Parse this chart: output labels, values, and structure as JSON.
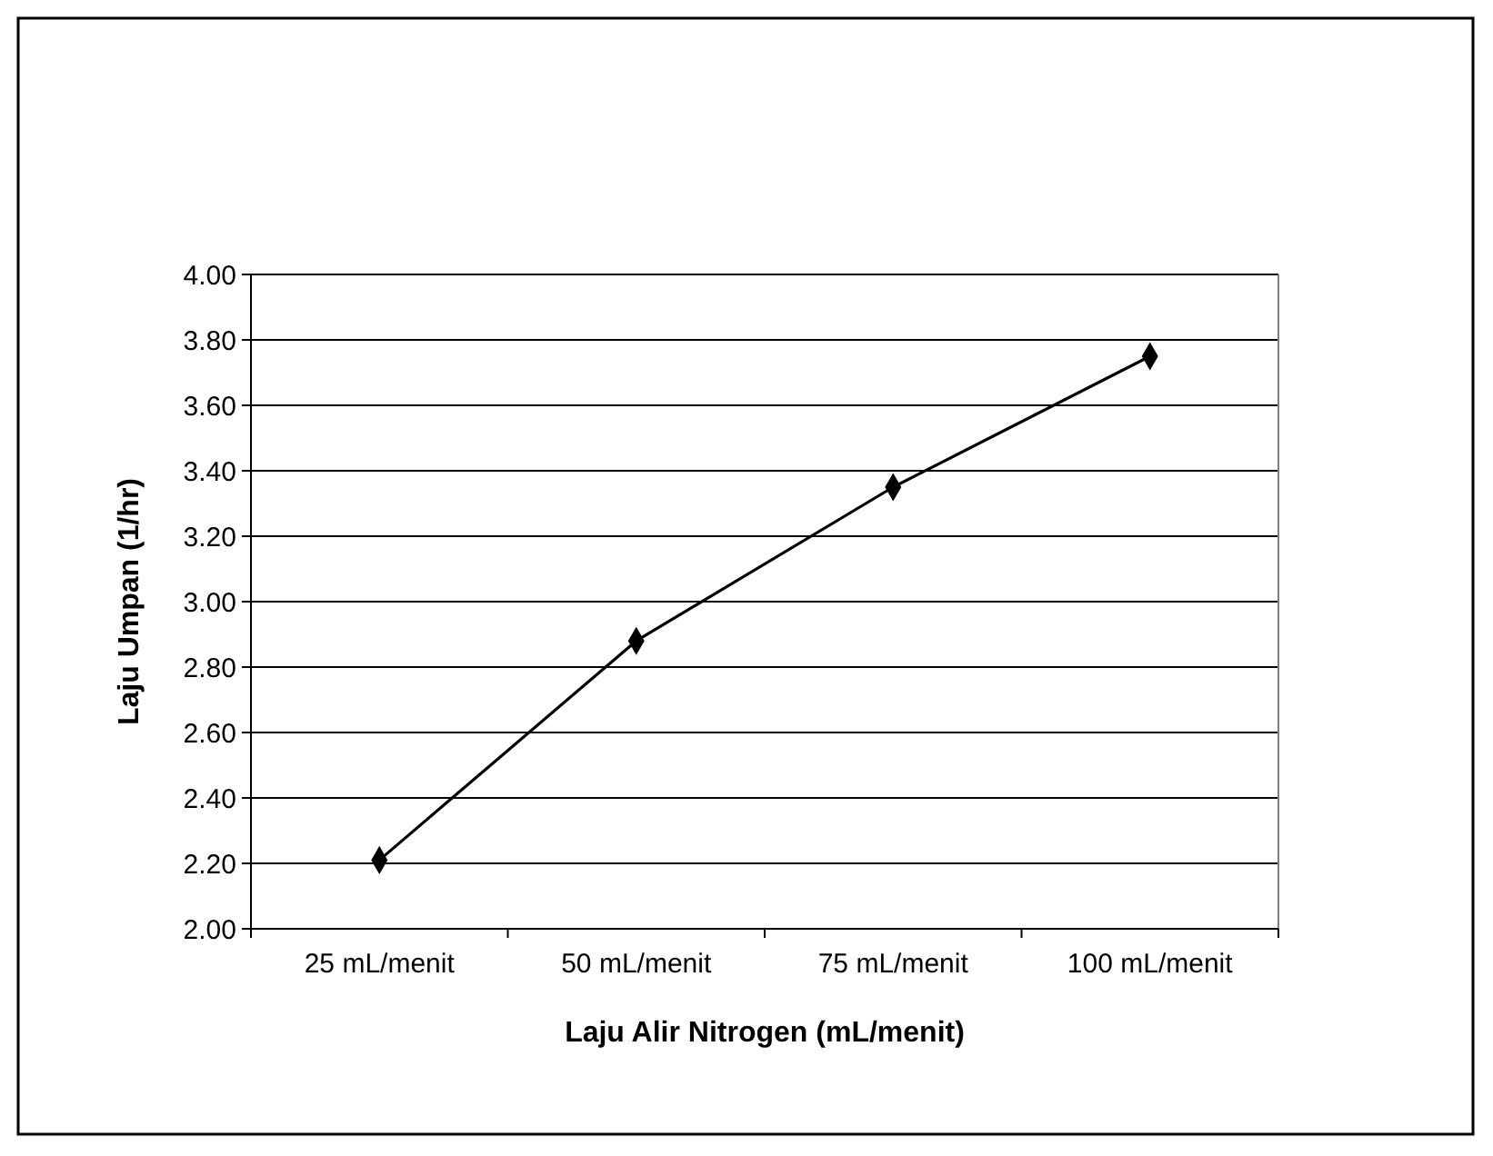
{
  "chart_data": {
    "type": "line",
    "xlabel": "Laju Alir Nitrogen (mL/menit)",
    "ylabel": "Laju Umpan (1/hr)",
    "categories": [
      "25 mL/menit",
      "50 mL/menit",
      "75 mL/menit",
      "100 mL/menit"
    ],
    "series": [
      {
        "color": "#000000",
        "values": [
          2.21,
          2.88,
          3.35,
          3.75
        ]
      }
    ],
    "ylim": [
      2,
      4
    ],
    "yticks": [
      {
        "value": 2,
        "label": "2.00"
      },
      {
        "value": 2.2,
        "label": "2.20"
      },
      {
        "value": 2.4,
        "label": "2.40"
      },
      {
        "value": 2.6,
        "label": "2.60"
      },
      {
        "value": 2.8,
        "label": "2.80"
      },
      {
        "value": 3,
        "label": "3.00"
      },
      {
        "value": 3.2,
        "label": "3.20"
      },
      {
        "value": 3.4,
        "label": "3.40"
      },
      {
        "value": 3.6,
        "label": "3.60"
      },
      {
        "value": 3.8,
        "label": "3.80"
      },
      {
        "value": 4,
        "label": "4.00"
      }
    ],
    "grid": "y",
    "marker": "diamond",
    "line_style": "solid"
  }
}
